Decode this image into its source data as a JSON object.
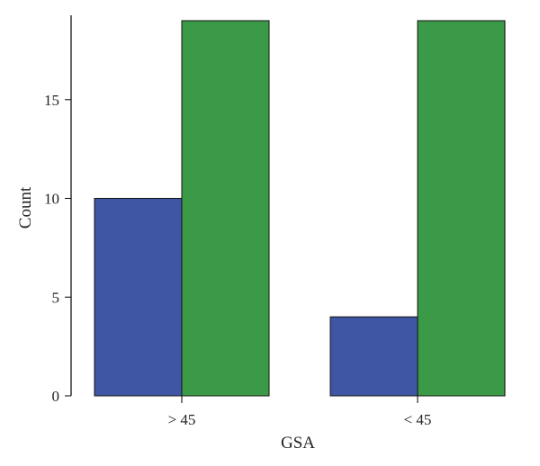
{
  "chart_data": {
    "type": "bar",
    "title": "",
    "xlabel": "GSA",
    "ylabel": "Count",
    "categories": [
      "> 45",
      "< 45"
    ],
    "series": [
      {
        "values": [
          10,
          4
        ],
        "color": "#3f56a4"
      },
      {
        "values": [
          19,
          19
        ],
        "color": "#3b9a47"
      }
    ],
    "ylim": [
      0,
      19
    ],
    "yticks": [
      0,
      5,
      10,
      15
    ],
    "grid": false,
    "legend": "none"
  }
}
